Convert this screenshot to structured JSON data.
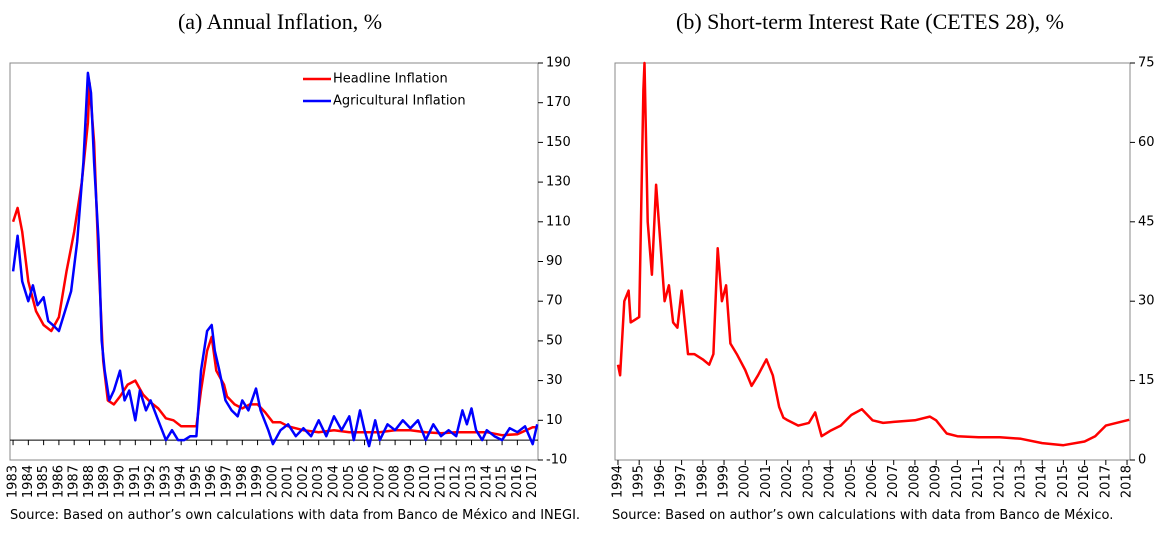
{
  "chart_data": [
    {
      "type": "line",
      "title": "(a) Annual Inflation, %",
      "source": "Source: Based on author’s own calculations with data from Banco de México and INEGI.",
      "xlim": [
        1982.8,
        2017.35
      ],
      "xticks": [
        1983,
        1984,
        1985,
        1986,
        1987,
        1988,
        1989,
        1990,
        1991,
        1992,
        1993,
        1994,
        1995,
        1996,
        1997,
        1998,
        1999,
        2000,
        2001,
        2002,
        2003,
        2004,
        2005,
        2006,
        2007,
        2008,
        2009,
        2010,
        2011,
        2012,
        2013,
        2014,
        2015,
        2016,
        2017
      ],
      "ylim": [
        -10,
        190
      ],
      "yticks": [
        -10,
        10,
        30,
        50,
        70,
        90,
        110,
        130,
        150,
        170,
        190
      ],
      "legend": "upper right",
      "series": [
        {
          "name": "Headline Inflation",
          "color": "#ff0000",
          "x": [
            1983,
            1983.3,
            1983.6,
            1984,
            1984.5,
            1985,
            1985.5,
            1986,
            1986.5,
            1987,
            1987.5,
            1987.9,
            1988,
            1988.3,
            1988.6,
            1988.9,
            1989.2,
            1989.6,
            1990,
            1990.5,
            1991,
            1991.5,
            1992,
            1992.5,
            1993,
            1993.5,
            1994,
            1994.5,
            1995,
            1995.3,
            1995.7,
            1996,
            1996.3,
            1996.8,
            1997,
            1997.5,
            1998,
            1998.5,
            1999,
            1999.5,
            2000,
            2000.5,
            2001,
            2002,
            2003,
            2004,
            2005,
            2006,
            2007,
            2008,
            2009,
            2010,
            2011,
            2012,
            2013,
            2014,
            2015,
            2016,
            2017,
            2017.3
          ],
          "values": [
            110,
            117,
            105,
            80,
            65,
            58,
            55,
            62,
            85,
            105,
            130,
            160,
            180,
            150,
            90,
            40,
            20,
            18,
            22,
            28,
            30,
            23,
            19,
            16,
            11,
            10,
            7,
            7,
            7,
            25,
            45,
            52,
            35,
            28,
            22,
            18,
            16,
            18,
            18,
            14,
            9,
            9,
            7,
            5,
            4,
            5,
            4,
            4,
            4,
            5,
            5,
            4,
            3.5,
            4,
            4,
            4,
            2.5,
            3,
            6.5,
            6.5
          ]
        },
        {
          "name": "Agricultural Inflation",
          "color": "#0000ff",
          "x": [
            1983,
            1983.3,
            1983.6,
            1984,
            1984.3,
            1984.6,
            1985,
            1985.3,
            1985.6,
            1986,
            1986.4,
            1986.8,
            1987.2,
            1987.6,
            1987.9,
            1988.1,
            1988.3,
            1988.6,
            1988.8,
            1989,
            1989.3,
            1989.6,
            1990,
            1990.3,
            1990.6,
            1991,
            1991.3,
            1991.7,
            1992,
            1992.5,
            1993,
            1993.4,
            1993.8,
            1994.2,
            1994.6,
            1995,
            1995.3,
            1995.7,
            1996,
            1996.2,
            1996.5,
            1996.9,
            1997.3,
            1997.7,
            1998,
            1998.4,
            1998.9,
            1999.2,
            1999.7,
            2000,
            2000.5,
            2001,
            2001.5,
            2002,
            2002.5,
            2003,
            2003.5,
            2004,
            2004.5,
            2005,
            2005.3,
            2005.7,
            2006,
            2006.3,
            2006.7,
            2007,
            2007.5,
            2008,
            2008.5,
            2009,
            2009.5,
            2010,
            2010.5,
            2011,
            2011.5,
            2012,
            2012.4,
            2012.7,
            2013,
            2013.3,
            2013.7,
            2014,
            2014.5,
            2015,
            2015.5,
            2016,
            2016.5,
            2017,
            2017.3
          ],
          "values": [
            85,
            103,
            80,
            70,
            78,
            68,
            72,
            60,
            58,
            55,
            65,
            75,
            100,
            140,
            185,
            175,
            140,
            100,
            50,
            35,
            20,
            25,
            35,
            20,
            25,
            10,
            25,
            15,
            20,
            10,
            0,
            5,
            0,
            0,
            2,
            2,
            35,
            55,
            58,
            45,
            35,
            20,
            15,
            12,
            20,
            15,
            26,
            15,
            5,
            -2,
            5,
            8,
            2,
            6,
            2,
            10,
            2,
            12,
            5,
            12,
            0,
            15,
            5,
            -3,
            10,
            0,
            8,
            5,
            10,
            6,
            10,
            0,
            8,
            2,
            5,
            2,
            15,
            8,
            16,
            5,
            0,
            5,
            2,
            0,
            6,
            4,
            7,
            -2,
            8
          ]
        }
      ]
    },
    {
      "type": "line",
      "title": "(b) Short-term Interest Rate (CETES 28), %",
      "source": "Source: Based on author’s own calculations with data from Banco de México.",
      "xlim": [
        1993.86,
        2018.14
      ],
      "xticks": [
        1994,
        1995,
        1996,
        1997,
        1998,
        1999,
        2000,
        2001,
        2002,
        2003,
        2004,
        2005,
        2006,
        2007,
        2008,
        2009,
        2010,
        2011,
        2012,
        2013,
        2014,
        2015,
        2016,
        2017,
        2018
      ],
      "ylim": [
        0,
        75
      ],
      "yticks": [
        0,
        15,
        30,
        45,
        60,
        75
      ],
      "series": [
        {
          "color": "#ff0000",
          "x": [
            1994,
            1994.1,
            1994.3,
            1994.5,
            1994.6,
            1995,
            1995.2,
            1995.25,
            1995.4,
            1995.6,
            1995.8,
            1996,
            1996.2,
            1996.4,
            1996.6,
            1996.8,
            1997,
            1997.3,
            1997.6,
            1998,
            1998.3,
            1998.5,
            1998.7,
            1998.9,
            1999.1,
            1999.3,
            1999.6,
            2000,
            2000.3,
            2000.6,
            2001,
            2001.3,
            2001.6,
            2001.8,
            2002,
            2002.5,
            2003,
            2003.3,
            2003.6,
            2004,
            2004.5,
            2005,
            2005.5,
            2006,
            2006.5,
            2007,
            2008,
            2008.7,
            2009,
            2009.5,
            2010,
            2011,
            2012,
            2013,
            2014,
            2015,
            2016,
            2016.5,
            2017,
            2017.5,
            2018,
            2018.1
          ],
          "values": [
            18,
            16,
            30,
            32,
            26,
            27,
            70,
            75,
            45,
            35,
            52,
            41,
            30,
            33,
            26,
            25,
            32,
            20,
            20,
            19,
            18,
            20,
            40,
            30,
            33,
            22,
            20,
            17,
            14,
            16,
            19,
            16,
            10,
            8,
            7.5,
            6.5,
            7,
            9,
            4.5,
            5.5,
            6.5,
            8.5,
            9.6,
            7.5,
            7,
            7.2,
            7.5,
            8.2,
            7.5,
            5,
            4.5,
            4.3,
            4.3,
            4,
            3.2,
            2.8,
            3.5,
            4.5,
            6.5,
            7,
            7.5,
            7.6
          ]
        }
      ]
    }
  ]
}
